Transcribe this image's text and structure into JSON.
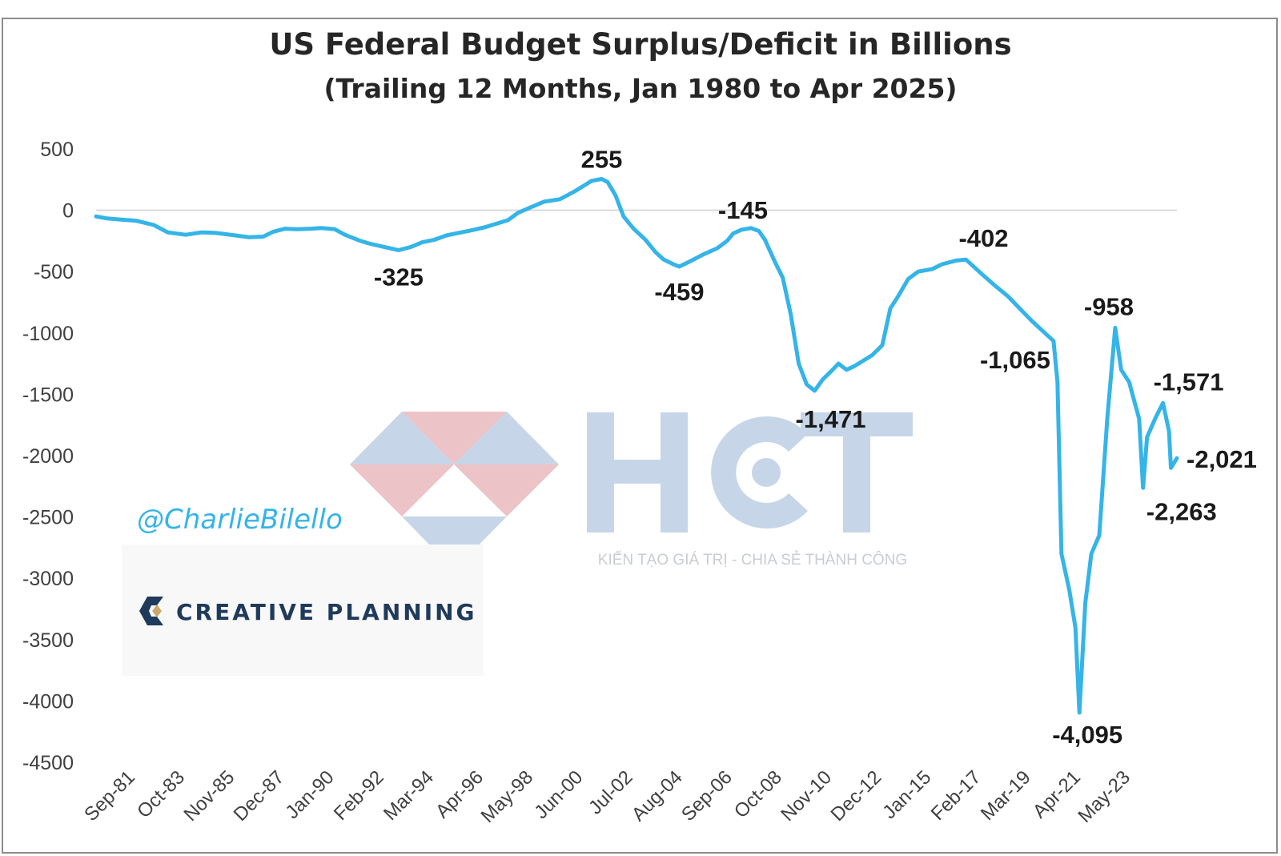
{
  "chart_data": {
    "type": "line",
    "title": "US Federal Budget Surplus/Deficit in Billions",
    "subtitle": "(Trailing 12 Months, Jan 1980 to Apr 2025)",
    "xlabel": "",
    "ylabel": "",
    "ylim": [
      -4500,
      500
    ],
    "yticks": [
      500,
      0,
      -500,
      -1000,
      -1500,
      -2000,
      -2500,
      -3000,
      -3500,
      -4000,
      -4500
    ],
    "ytick_labels": [
      "500",
      "0",
      "-500",
      "-1000",
      "-1500",
      "-2000",
      "-2500",
      "-3000",
      "-3500",
      "-4000",
      "-4500"
    ],
    "xlim": [
      "1980-01",
      "2025-04"
    ],
    "xtick_labels": [
      "Sep-81",
      "Oct-83",
      "Nov-85",
      "Dec-87",
      "Jan-90",
      "Feb-92",
      "Mar-94",
      "Apr-96",
      "May-98",
      "Jun-00",
      "Jul-02",
      "Aug-04",
      "Sep-06",
      "Oct-08",
      "Nov-10",
      "Dec-12",
      "Jan-15",
      "Feb-17",
      "Mar-19",
      "Apr-21",
      "May-23"
    ],
    "xtick_dates": [
      "1981-09",
      "1983-10",
      "1985-11",
      "1987-12",
      "1990-01",
      "1992-02",
      "1994-03",
      "1996-04",
      "1998-05",
      "2000-06",
      "2002-07",
      "2004-08",
      "2006-09",
      "2008-10",
      "2010-11",
      "2012-12",
      "2015-01",
      "2017-02",
      "2019-03",
      "2021-04",
      "2023-05"
    ],
    "grid": "zero line only",
    "legend": "none",
    "series": [
      {
        "color": "#35b4e8",
        "points": [
          [
            "1980-01",
            -50
          ],
          [
            "1980-06",
            -65
          ],
          [
            "1981-01",
            -75
          ],
          [
            "1981-09",
            -85
          ],
          [
            "1982-06",
            -120
          ],
          [
            "1983-01",
            -180
          ],
          [
            "1983-10",
            -200
          ],
          [
            "1984-06",
            -180
          ],
          [
            "1985-01",
            -185
          ],
          [
            "1985-11",
            -205
          ],
          [
            "1986-06",
            -220
          ],
          [
            "1987-01",
            -215
          ],
          [
            "1987-06",
            -175
          ],
          [
            "1987-12",
            -150
          ],
          [
            "1988-06",
            -155
          ],
          [
            "1989-01",
            -150
          ],
          [
            "1989-06",
            -145
          ],
          [
            "1990-01",
            -155
          ],
          [
            "1990-06",
            -200
          ],
          [
            "1991-01",
            -245
          ],
          [
            "1991-06",
            -270
          ],
          [
            "1992-02",
            -300
          ],
          [
            "1992-09",
            -325
          ],
          [
            "1993-03",
            -300
          ],
          [
            "1993-09",
            -260
          ],
          [
            "1994-03",
            -240
          ],
          [
            "1994-09",
            -205
          ],
          [
            "1995-03",
            -185
          ],
          [
            "1995-09",
            -165
          ],
          [
            "1996-04",
            -140
          ],
          [
            "1996-10",
            -110
          ],
          [
            "1997-04",
            -80
          ],
          [
            "1997-09",
            -20
          ],
          [
            "1998-05",
            35
          ],
          [
            "1998-10",
            70
          ],
          [
            "1999-06",
            90
          ],
          [
            "2000-01",
            150
          ],
          [
            "2000-06",
            200
          ],
          [
            "2000-10",
            240
          ],
          [
            "2001-03",
            255
          ],
          [
            "2001-06",
            230
          ],
          [
            "2001-10",
            120
          ],
          [
            "2002-02",
            -50
          ],
          [
            "2002-07",
            -150
          ],
          [
            "2003-01",
            -240
          ],
          [
            "2003-06",
            -340
          ],
          [
            "2003-10",
            -400
          ],
          [
            "2004-03",
            -440
          ],
          [
            "2004-06",
            -459
          ],
          [
            "2004-11",
            -420
          ],
          [
            "2005-06",
            -360
          ],
          [
            "2006-01",
            -310
          ],
          [
            "2006-06",
            -250
          ],
          [
            "2006-09",
            -190
          ],
          [
            "2007-01",
            -160
          ],
          [
            "2007-06",
            -145
          ],
          [
            "2007-10",
            -170
          ],
          [
            "2008-01",
            -240
          ],
          [
            "2008-06",
            -420
          ],
          [
            "2008-10",
            -550
          ],
          [
            "2009-02",
            -850
          ],
          [
            "2009-06",
            -1250
          ],
          [
            "2009-10",
            -1420
          ],
          [
            "2010-02",
            -1471
          ],
          [
            "2010-06",
            -1380
          ],
          [
            "2010-11",
            -1300
          ],
          [
            "2011-02",
            -1250
          ],
          [
            "2011-06",
            -1300
          ],
          [
            "2011-10",
            -1270
          ],
          [
            "2012-03",
            -1220
          ],
          [
            "2012-07",
            -1180
          ],
          [
            "2012-12",
            -1100
          ],
          [
            "2013-04",
            -800
          ],
          [
            "2013-08",
            -700
          ],
          [
            "2014-01",
            -560
          ],
          [
            "2014-06",
            -500
          ],
          [
            "2015-01",
            -480
          ],
          [
            "2015-06",
            -440
          ],
          [
            "2016-01",
            -410
          ],
          [
            "2016-06",
            -402
          ],
          [
            "2017-02",
            -520
          ],
          [
            "2017-09",
            -620
          ],
          [
            "2018-03",
            -700
          ],
          [
            "2018-09",
            -800
          ],
          [
            "2019-03",
            -900
          ],
          [
            "2019-09",
            -990
          ],
          [
            "2020-02",
            -1065
          ],
          [
            "2020-04",
            -1400
          ],
          [
            "2020-06",
            -2800
          ],
          [
            "2020-10",
            -3100
          ],
          [
            "2021-01",
            -3400
          ],
          [
            "2021-03",
            -4095
          ],
          [
            "2021-06",
            -3200
          ],
          [
            "2021-09",
            -2800
          ],
          [
            "2022-01",
            -2650
          ],
          [
            "2022-05",
            -1700
          ],
          [
            "2022-09",
            -958
          ],
          [
            "2022-12",
            -1300
          ],
          [
            "2023-04",
            -1400
          ],
          [
            "2023-09",
            -1700
          ],
          [
            "2023-11",
            -2263
          ],
          [
            "2024-01",
            -1850
          ],
          [
            "2024-05",
            -1700
          ],
          [
            "2024-09",
            -1571
          ],
          [
            "2024-12",
            -1800
          ],
          [
            "2025-01",
            -2100
          ],
          [
            "2025-04",
            -2021
          ]
        ]
      }
    ],
    "annotations": [
      {
        "text": "255",
        "x": "2001-03",
        "y": 255
      },
      {
        "text": "-325",
        "x": "1992-09",
        "y": -325
      },
      {
        "text": "-459",
        "x": "2004-06",
        "y": -459
      },
      {
        "text": "-145",
        "x": "2007-06",
        "y": -145
      },
      {
        "text": "-1,471",
        "x": "2010-02",
        "y": -1471
      },
      {
        "text": "-402",
        "x": "2016-06",
        "y": -402
      },
      {
        "text": "-1,065",
        "x": "2020-02",
        "y": -1065
      },
      {
        "text": "-4,095",
        "x": "2021-03",
        "y": -4095
      },
      {
        "text": "-958",
        "x": "2022-09",
        "y": -958
      },
      {
        "text": "-2,263",
        "x": "2023-11",
        "y": -2263
      },
      {
        "text": "-1,571",
        "x": "2024-09",
        "y": -1571
      },
      {
        "text": "-2,021",
        "x": "2025-04",
        "y": -2021
      }
    ]
  },
  "handle": "@CharlieBilello",
  "brand": {
    "name": "CREATIVE PLANNING",
    "colors": {
      "gold": "#c9a96e",
      "navy": "#1f3a5a"
    }
  },
  "watermark": {
    "logo_text": "HCT",
    "tagline": "KIẾN TẠO GIÁ TRỊ - CHIA SẺ THÀNH CÔNG",
    "colors": {
      "blue": "#c6d6e8",
      "red": "#ecc3c7"
    }
  }
}
